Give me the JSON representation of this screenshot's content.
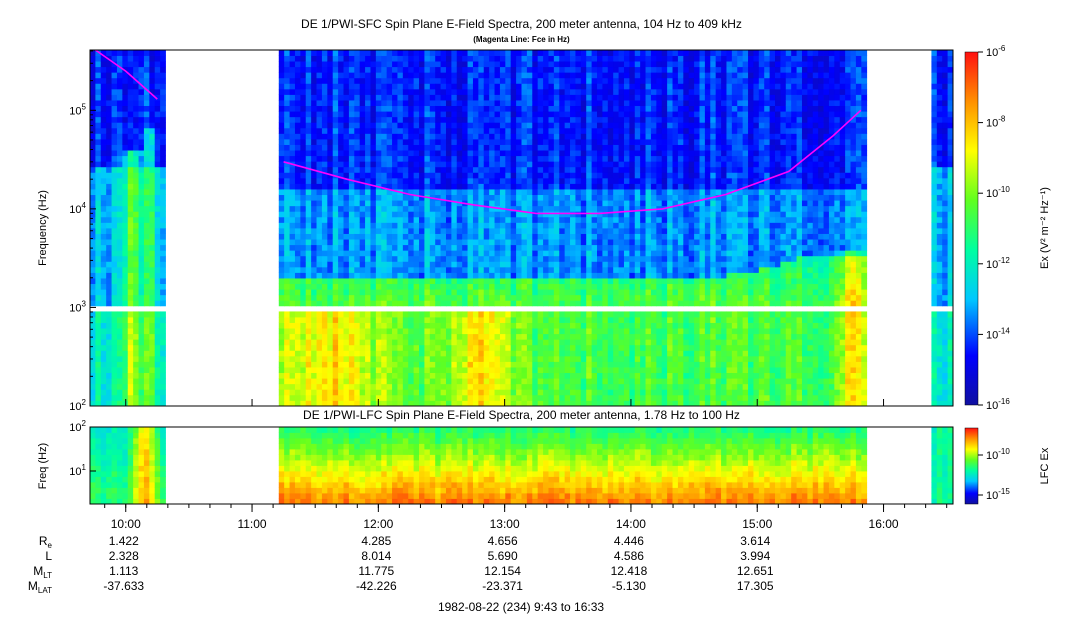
{
  "chart_data": [
    {
      "type": "heatmap",
      "title": "DE 1/PWI-SFC  Spin Plane E-Field Spectra, 200 meter antenna, 104 Hz to 409 kHz",
      "subtitle": "(Magenta Line: Fce in Hz)",
      "ylabel": "Frequency (Hz)",
      "y_scale": "log",
      "ylim": [
        100,
        409000
      ],
      "ytick_labels": [
        {
          "base": "10",
          "exp": "2"
        },
        {
          "base": "10",
          "exp": "3"
        },
        {
          "base": "10",
          "exp": "4"
        },
        {
          "base": "10",
          "exp": "5"
        }
      ],
      "x_range_hours": [
        9.717,
        16.55
      ],
      "data_gaps_hours": [
        [
          10.33,
          11.22
        ],
        [
          15.85,
          16.4
        ]
      ],
      "colorbar": {
        "label": "Ex (V² m⁻² Hz⁻¹)",
        "scale": "log",
        "range": [
          1e-16,
          1e-06
        ],
        "tick_labels": [
          {
            "base": "10",
            "exp": "-6"
          },
          {
            "base": "10",
            "exp": "-8"
          },
          {
            "base": "10",
            "exp": "-10"
          },
          {
            "base": "10",
            "exp": "-12"
          },
          {
            "base": "10",
            "exp": "-14"
          },
          {
            "base": "10",
            "exp": "-16"
          }
        ]
      },
      "overlay_fce": {
        "color": "#ff00ff",
        "x_hours": [
          9.76,
          10.0,
          10.25,
          11.25,
          11.75,
          12.25,
          12.75,
          13.25,
          13.75,
          14.25,
          14.75,
          15.25,
          15.6,
          15.82
        ],
        "y_hz": [
          409000,
          250000,
          130000,
          30000,
          20000,
          14000,
          11000,
          9000,
          9000,
          10000,
          14000,
          24000,
          55000,
          100000
        ]
      }
    },
    {
      "type": "heatmap",
      "title": "DE 1/PWI-LFC  Spin Plane E-Field Spectra, 200 meter antenna, 1.78 Hz to 100 Hz",
      "ylabel": "Freq (Hz)",
      "y_scale": "log",
      "ylim": [
        1.78,
        100
      ],
      "ytick_labels": [
        {
          "base": "10",
          "exp": "1"
        },
        {
          "base": "10",
          "exp": "2"
        }
      ],
      "data_gaps_hours": [
        [
          10.33,
          11.22
        ],
        [
          15.85,
          16.4
        ]
      ],
      "colorbar": {
        "label": "LFC Ex",
        "scale": "log",
        "tick_labels": [
          {
            "base": "10",
            "exp": "-10"
          },
          {
            "base": "10",
            "exp": "-15"
          }
        ]
      }
    }
  ],
  "x_axis": {
    "tick_hours": [
      10,
      11,
      12,
      13,
      14,
      15,
      16
    ],
    "tick_labels": [
      "10:00",
      "11:00",
      "12:00",
      "13:00",
      "14:00",
      "15:00",
      "16:00"
    ]
  },
  "ephemeris": {
    "labels": [
      {
        "main": "R",
        "sub": "e"
      },
      {
        "main": "L",
        "sub": ""
      },
      {
        "main": "M",
        "sub": "LT"
      },
      {
        "main": "M",
        "sub": "LAT"
      }
    ],
    "columns": [
      {
        "hour": 10,
        "values": [
          "1.422",
          "2.328",
          "1.113",
          "-37.633"
        ]
      },
      {
        "hour": 12,
        "values": [
          "4.285",
          "8.014",
          "11.775",
          "-42.226"
        ]
      },
      {
        "hour": 13,
        "values": [
          "4.656",
          "5.690",
          "12.154",
          "-23.371"
        ]
      },
      {
        "hour": 14,
        "values": [
          "4.446",
          "4.586",
          "12.418",
          "-5.130"
        ]
      },
      {
        "hour": 15,
        "values": [
          "3.614",
          "3.994",
          "12.651",
          "17.305"
        ]
      }
    ]
  },
  "footer": "1982-08-22 (234) 9:43 to 16:33"
}
